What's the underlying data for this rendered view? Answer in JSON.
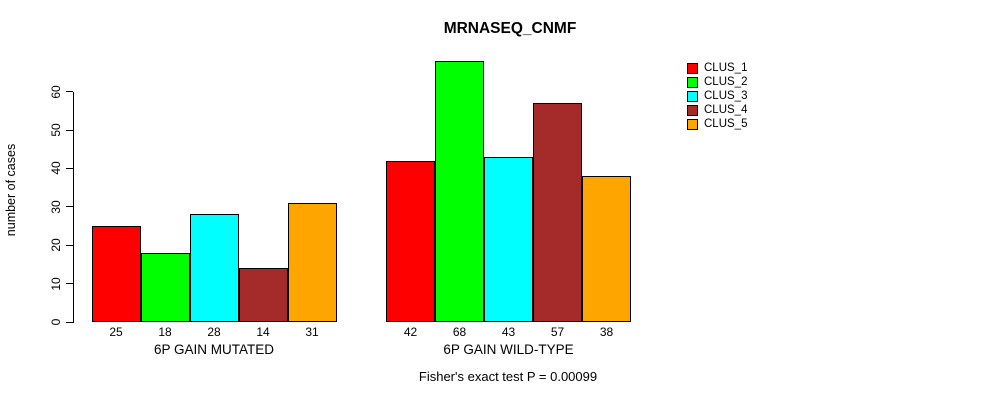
{
  "chart_data": {
    "type": "bar",
    "title": "MRNASEQ_CNMF",
    "ylabel": "number of cases",
    "xlabel": "",
    "annotation": "Fisher's exact test P = 0.00099",
    "groups": [
      {
        "label": "6P GAIN MUTATED",
        "values": [
          25,
          18,
          28,
          14,
          31
        ]
      },
      {
        "label": "6P GAIN WILD-TYPE",
        "values": [
          42,
          68,
          43,
          57,
          38
        ]
      }
    ],
    "series": [
      {
        "name": "CLUS_1",
        "color": "#ff0000"
      },
      {
        "name": "CLUS_2",
        "color": "#00ff00"
      },
      {
        "name": "CLUS_3",
        "color": "#00ffff"
      },
      {
        "name": "CLUS_4",
        "color": "#a52a2a"
      },
      {
        "name": "CLUS_5",
        "color": "#ffa500"
      }
    ],
    "yticks": [
      0,
      10,
      20,
      30,
      40,
      50,
      60
    ],
    "ylim": [
      0,
      68
    ],
    "grid": false,
    "legend_position": "right",
    "value_labels_shown": true,
    "bar_border_color": "#000000",
    "background": "#ffffff"
  }
}
